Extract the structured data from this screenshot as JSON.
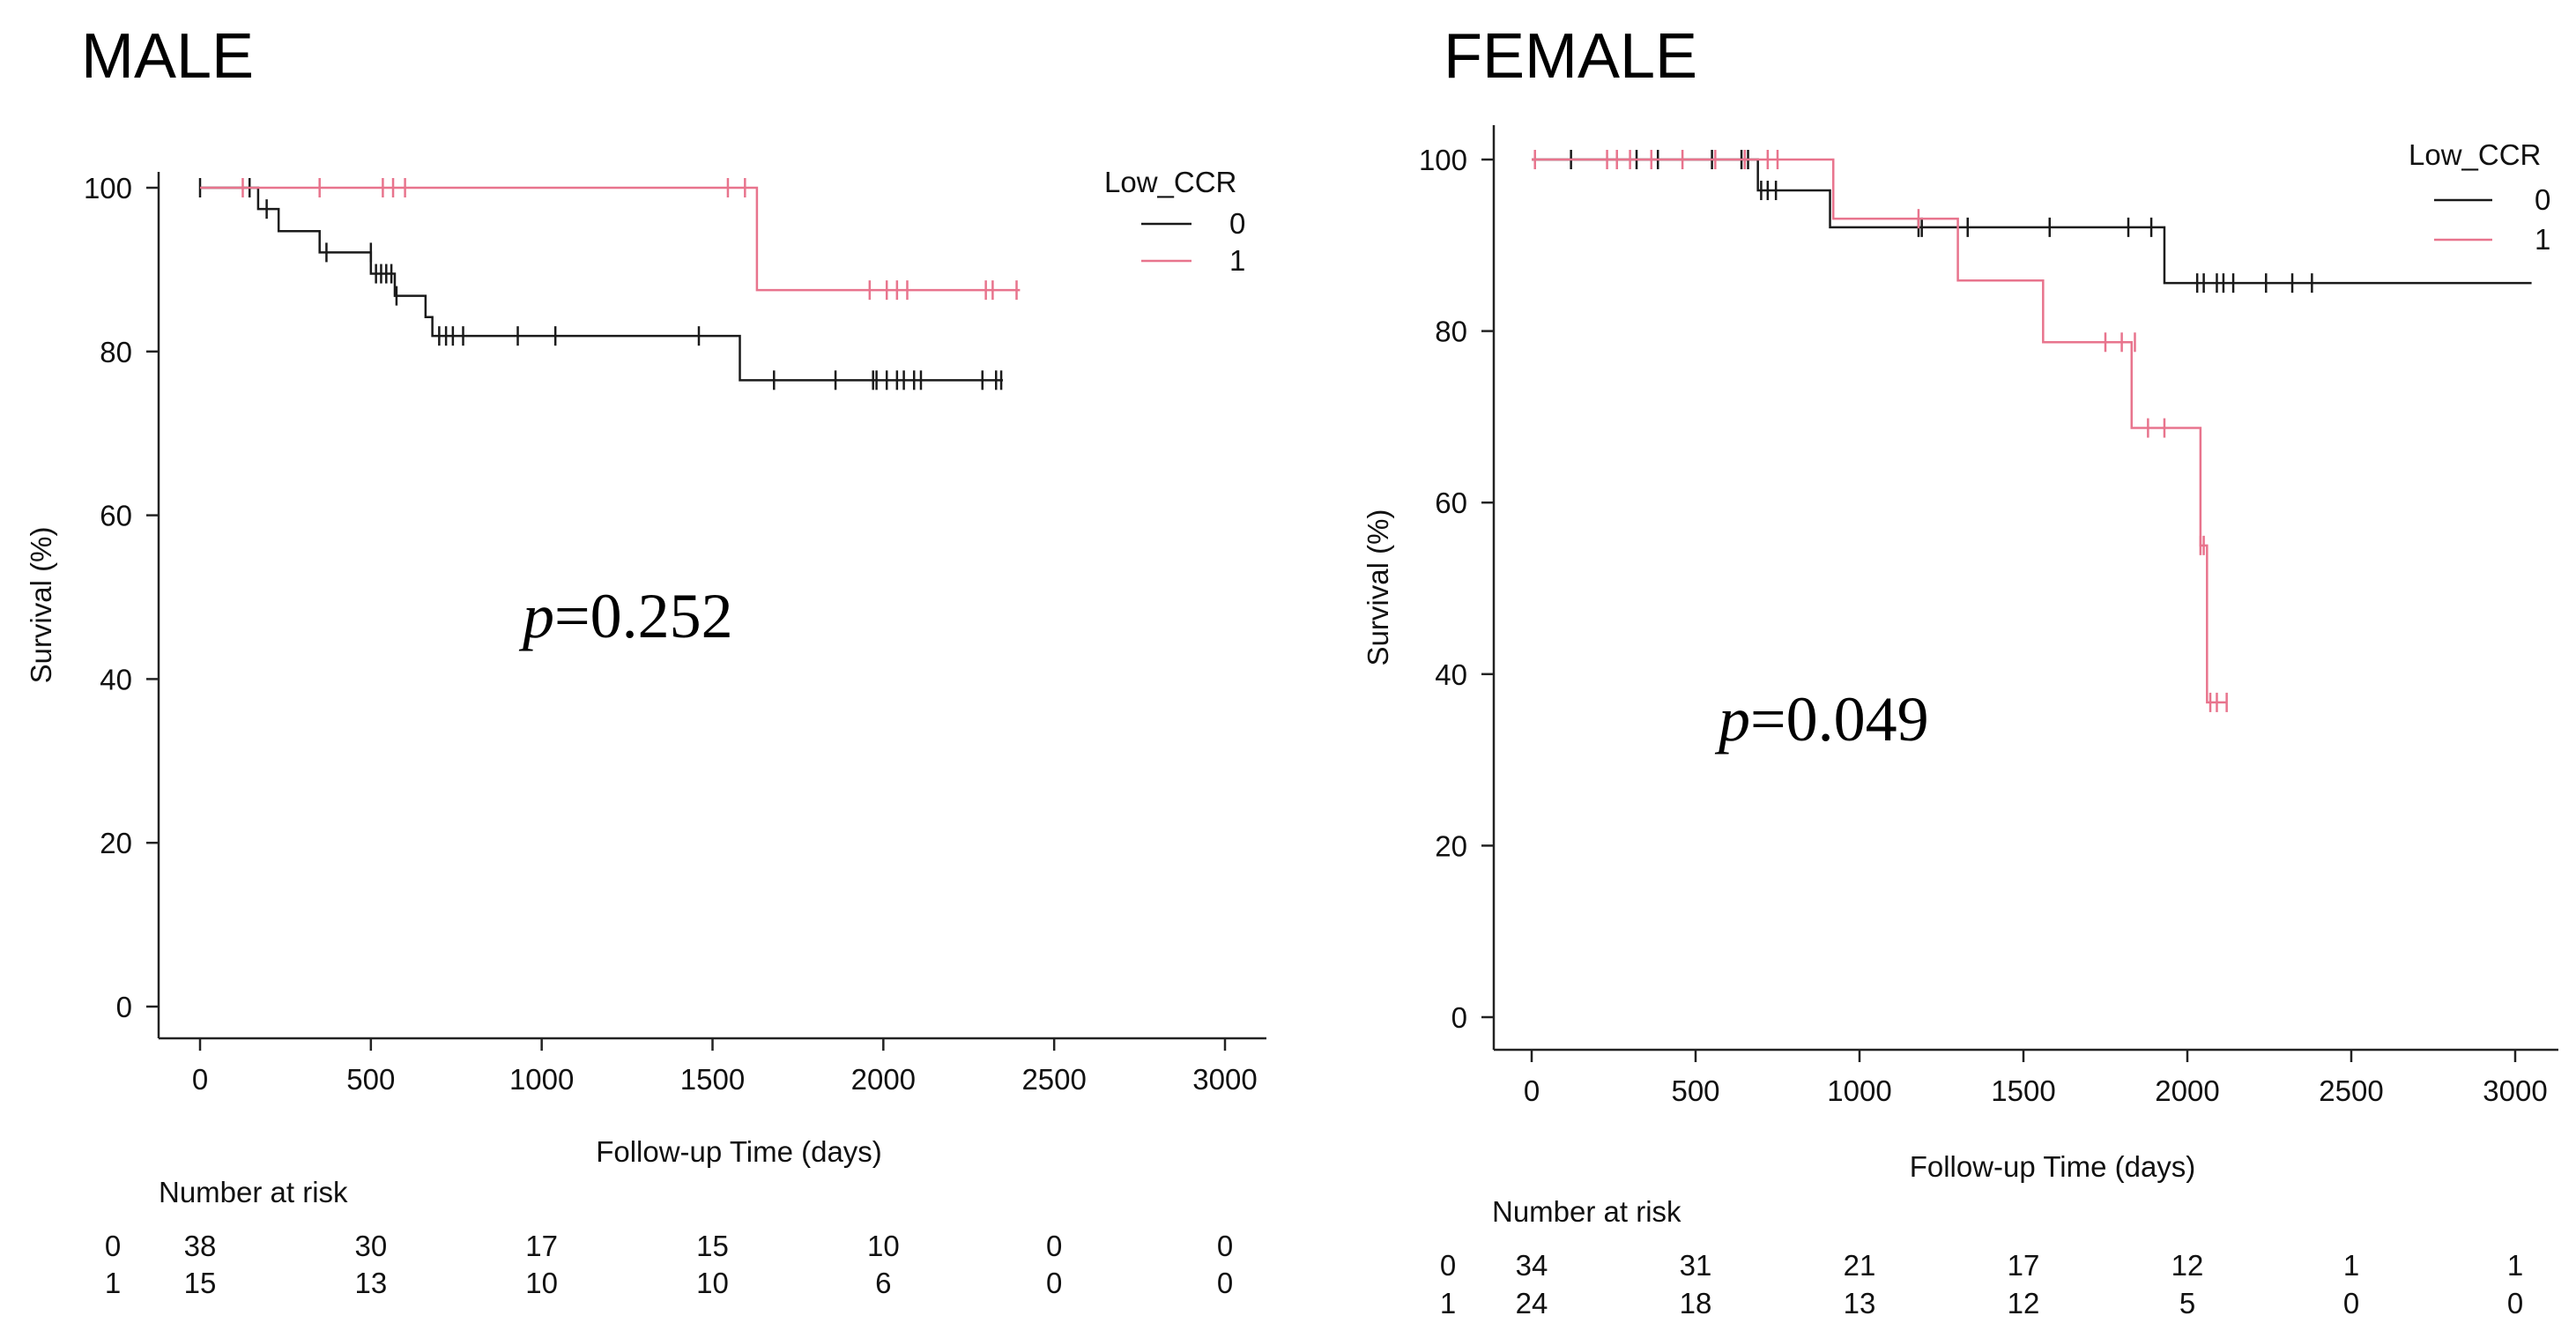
{
  "chart_data": [
    {
      "type": "line",
      "subtype": "kaplan-meier",
      "title": "MALE",
      "xlabel": "Follow-up Time (days)",
      "ylabel": "Survival (%)",
      "xlim": [
        0,
        3000
      ],
      "ylim": [
        0,
        100
      ],
      "x_ticks": [
        0,
        500,
        1000,
        1500,
        2000,
        2500,
        3000
      ],
      "y_ticks": [
        0,
        20,
        40,
        60,
        80,
        100
      ],
      "grid": false,
      "legend": {
        "title": "Low_CCR",
        "placement": "top-right"
      },
      "annotation": {
        "prefix": "p",
        "value": "=0.252"
      },
      "series": [
        {
          "name": "0",
          "color": "#1a1a1a",
          "steps": [
            [
              0,
              100
            ],
            [
              170,
              97.4
            ],
            [
              230,
              94.7
            ],
            [
              350,
              92.1
            ],
            [
              500,
              89.5
            ],
            [
              570,
              86.8
            ],
            [
              660,
              84.2
            ],
            [
              680,
              81.9
            ],
            [
              1580,
              76.5
            ],
            [
              2350,
              76.5
            ]
          ],
          "censored": [
            [
              0,
              100
            ],
            [
              145,
              100
            ],
            [
              195,
              97.4
            ],
            [
              370,
              92.1
            ],
            [
              500,
              92.1
            ],
            [
              515,
              89.5
            ],
            [
              530,
              89.5
            ],
            [
              545,
              89.5
            ],
            [
              560,
              89.5
            ],
            [
              575,
              86.8
            ],
            [
              700,
              81.9
            ],
            [
              720,
              81.9
            ],
            [
              740,
              81.9
            ],
            [
              770,
              81.9
            ],
            [
              930,
              81.9
            ],
            [
              1040,
              81.9
            ],
            [
              1460,
              81.9
            ],
            [
              1680,
              76.5
            ],
            [
              1860,
              76.5
            ],
            [
              1970,
              76.5
            ],
            [
              1980,
              76.5
            ],
            [
              2010,
              76.5
            ],
            [
              2040,
              76.5
            ],
            [
              2060,
              76.5
            ],
            [
              2090,
              76.5
            ],
            [
              2110,
              76.5
            ],
            [
              2290,
              76.5
            ],
            [
              2330,
              76.5
            ],
            [
              2345,
              76.5
            ]
          ]
        },
        {
          "name": "1",
          "color": "#e8748d",
          "steps": [
            [
              0,
              100
            ],
            [
              1630,
              87.5
            ],
            [
              2400,
              87.5
            ]
          ],
          "censored": [
            [
              125,
              100
            ],
            [
              350,
              100
            ],
            [
              535,
              100
            ],
            [
              565,
              100
            ],
            [
              600,
              100
            ],
            [
              1545,
              100
            ],
            [
              1595,
              100
            ],
            [
              1960,
              87.5
            ],
            [
              2010,
              87.5
            ],
            [
              2040,
              87.5
            ],
            [
              2070,
              87.5
            ],
            [
              2300,
              87.5
            ],
            [
              2320,
              87.5
            ],
            [
              2390,
              87.5
            ]
          ]
        }
      ],
      "risk_table": {
        "header": "Number at risk",
        "times": [
          0,
          500,
          1000,
          1500,
          2000,
          2500,
          3000
        ],
        "rows": [
          {
            "label": "0",
            "values": [
              "38",
              "30",
              "17",
              "15",
              "10",
              "0",
              "0"
            ]
          },
          {
            "label": "1",
            "values": [
              "15",
              "13",
              "10",
              "10",
              "6",
              "0",
              "0"
            ]
          }
        ]
      }
    },
    {
      "type": "line",
      "subtype": "kaplan-meier",
      "title": "FEMALE",
      "xlabel": "Follow-up Time (days)",
      "ylabel": "Survival (%)",
      "xlim": [
        0,
        3000
      ],
      "ylim": [
        0,
        100
      ],
      "x_ticks": [
        0,
        500,
        1000,
        1500,
        2000,
        2500,
        3000
      ],
      "y_ticks": [
        0,
        20,
        40,
        60,
        80,
        100
      ],
      "grid": false,
      "legend": {
        "title": "Low_CCR",
        "placement": "top-right"
      },
      "annotation": {
        "prefix": "p",
        "value": "=0.049"
      },
      "series": [
        {
          "name": "0",
          "color": "#1a1a1a",
          "steps": [
            [
              0,
              100
            ],
            [
              690,
              96.4
            ],
            [
              910,
              92.1
            ],
            [
              1930,
              85.6
            ],
            [
              3050,
              85.6
            ]
          ],
          "censored": [
            [
              120,
              100
            ],
            [
              320,
              100
            ],
            [
              385,
              100
            ],
            [
              550,
              100
            ],
            [
              640,
              100
            ],
            [
              660,
              100
            ],
            [
              700,
              96.4
            ],
            [
              720,
              96.4
            ],
            [
              745,
              96.4
            ],
            [
              1180,
              92.1
            ],
            [
              1190,
              92.1
            ],
            [
              1330,
              92.1
            ],
            [
              1580,
              92.1
            ],
            [
              1820,
              92.1
            ],
            [
              1890,
              92.1
            ],
            [
              2030,
              85.6
            ],
            [
              2050,
              85.6
            ],
            [
              2090,
              85.6
            ],
            [
              2110,
              85.6
            ],
            [
              2140,
              85.6
            ],
            [
              2240,
              85.6
            ],
            [
              2320,
              85.6
            ],
            [
              2380,
              85.6
            ]
          ]
        },
        {
          "name": "1",
          "color": "#e8748d",
          "steps": [
            [
              0,
              100
            ],
            [
              920,
              93.1
            ],
            [
              1300,
              85.9
            ],
            [
              1560,
              78.7
            ],
            [
              1830,
              68.7
            ],
            [
              2040,
              55.0
            ],
            [
              2060,
              36.7
            ],
            [
              2120,
              36.7
            ]
          ],
          "censored": [
            [
              10,
              100
            ],
            [
              230,
              100
            ],
            [
              260,
              100
            ],
            [
              300,
              100
            ],
            [
              365,
              100
            ],
            [
              460,
              100
            ],
            [
              560,
              100
            ],
            [
              650,
              100
            ],
            [
              720,
              100
            ],
            [
              750,
              100
            ],
            [
              1180,
              93.1
            ],
            [
              1750,
              78.7
            ],
            [
              1800,
              78.7
            ],
            [
              1840,
              78.7
            ],
            [
              1880,
              68.7
            ],
            [
              1930,
              68.7
            ],
            [
              2040,
              55.0
            ],
            [
              2050,
              55.0
            ],
            [
              2070,
              36.7
            ],
            [
              2090,
              36.7
            ],
            [
              2120,
              36.7
            ]
          ]
        }
      ],
      "risk_table": {
        "header": "Number at risk",
        "times": [
          0,
          500,
          1000,
          1500,
          2000,
          2500,
          3000
        ],
        "rows": [
          {
            "label": "0",
            "values": [
              "34",
              "31",
              "21",
              "17",
              "12",
              "1",
              "1"
            ]
          },
          {
            "label": "1",
            "values": [
              "24",
              "18",
              "13",
              "12",
              "5",
              "0",
              "0"
            ]
          }
        ]
      }
    }
  ]
}
